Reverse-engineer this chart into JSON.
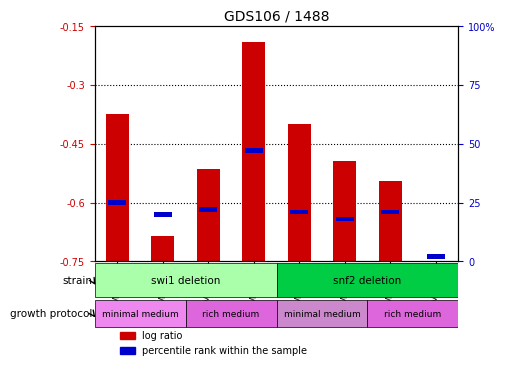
{
  "title": "GDS106 / 1488",
  "samples": [
    "GSM1006",
    "GSM1008",
    "GSM1012",
    "GSM1015",
    "GSM1007",
    "GSM1009",
    "GSM1013",
    "GSM1014"
  ],
  "log_ratios": [
    -0.375,
    -0.685,
    -0.515,
    -0.19,
    -0.4,
    -0.495,
    -0.545,
    -0.75
  ],
  "percentile_ranks": [
    25,
    20,
    22,
    47,
    21,
    18,
    21,
    2
  ],
  "ylim_left": [
    -0.75,
    -0.15
  ],
  "ylim_right": [
    0,
    100
  ],
  "yticks_left": [
    -0.75,
    -0.6,
    -0.45,
    -0.3,
    -0.15
  ],
  "yticks_right": [
    0,
    25,
    50,
    75,
    100
  ],
  "ytick_labels_left": [
    "-0.75",
    "-0.6",
    "-0.45",
    "-0.3",
    "-0.15"
  ],
  "ytick_labels_right": [
    "0",
    "25",
    "50",
    "75",
    "100%"
  ],
  "grid_lines": [
    -0.6,
    -0.45,
    -0.3
  ],
  "bar_color": "#cc0000",
  "percentile_color": "#0000cc",
  "bar_width": 0.5,
  "strain_groups": [
    {
      "label": "swi1 deletion",
      "start": 0,
      "end": 3,
      "color": "#aaffaa"
    },
    {
      "label": "snf2 deletion",
      "start": 4,
      "end": 7,
      "color": "#00cc44"
    }
  ],
  "protocol_groups": [
    {
      "label": "minimal medium",
      "start": 0,
      "end": 1,
      "color": "#ee88ee"
    },
    {
      "label": "rich medium",
      "start": 2,
      "end": 3,
      "color": "#dd66dd"
    },
    {
      "label": "minimal medium",
      "start": 4,
      "end": 5,
      "color": "#cc88cc"
    },
    {
      "label": "rich medium",
      "start": 6,
      "end": 7,
      "color": "#dd66dd"
    }
  ],
  "legend_items": [
    {
      "label": "log ratio",
      "color": "#cc0000"
    },
    {
      "label": "percentile rank within the sample",
      "color": "#0000cc"
    }
  ],
  "strain_label": "strain",
  "protocol_label": "growth protocol",
  "background_color": "#ffffff",
  "plot_bg_color": "#ffffff",
  "axis_color": "#000000",
  "tick_label_color_left": "#cc0000",
  "tick_label_color_right": "#0000cc"
}
